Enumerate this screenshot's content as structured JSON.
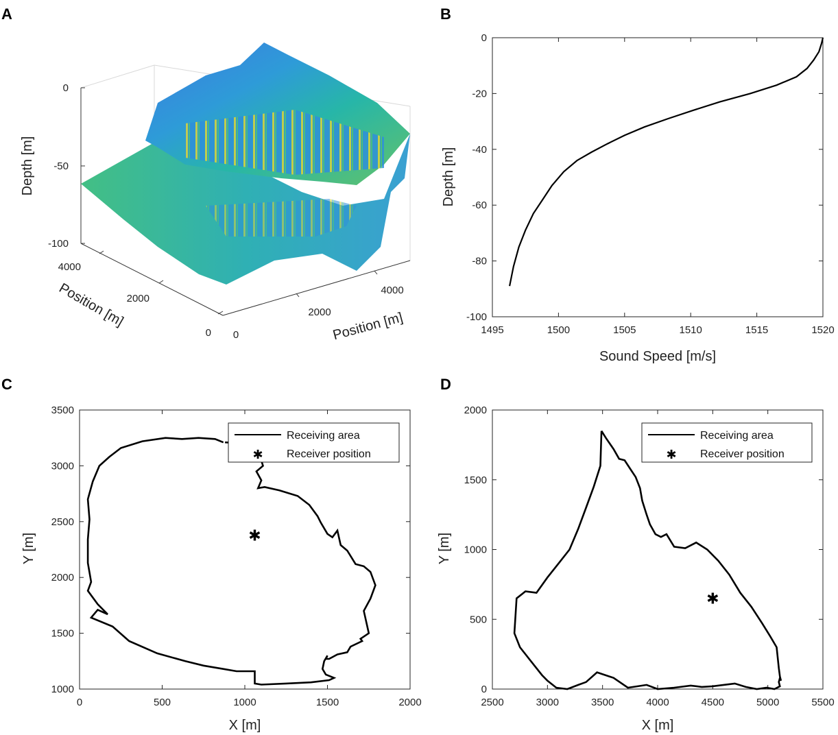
{
  "chart_data": [
    {
      "panel": "A",
      "type": "surface",
      "zlabel": "Depth [m]",
      "xlabel": "Position [m]",
      "ylabel": "Position [m]",
      "z_ticks": [
        "0",
        "-50",
        "-100"
      ],
      "x_ticks": [
        "0",
        "2000",
        "4000"
      ],
      "y_ticks": [
        "0",
        "2000",
        "4000"
      ],
      "zlim": [
        -100,
        0
      ],
      "colormap": [
        "#3d7be0",
        "#2e9bd8",
        "#27b6a8",
        "#63c26a",
        "#e7d63c"
      ]
    },
    {
      "panel": "B",
      "type": "line",
      "xlabel": "Sound Speed [m/s]",
      "ylabel": "Depth [m]",
      "xlim": [
        1495,
        1520
      ],
      "ylim": [
        -100,
        0
      ],
      "x_ticks": [
        1495,
        1500,
        1505,
        1510,
        1515,
        1520
      ],
      "y_ticks": [
        0,
        -20,
        -40,
        -60,
        -80,
        -100
      ],
      "x": [
        1520.0,
        1519.9,
        1519.7,
        1519.3,
        1518.8,
        1518.0,
        1516.5,
        1514.5,
        1512.2,
        1510.2,
        1508.3,
        1506.5,
        1505.0,
        1503.7,
        1502.5,
        1501.4,
        1500.4,
        1499.5,
        1498.8,
        1498.1,
        1497.5,
        1497.0,
        1496.6,
        1496.3
      ],
      "y": [
        0,
        -2,
        -5,
        -8,
        -11,
        -14,
        -17,
        -20,
        -23,
        -26,
        -29,
        -32,
        -35,
        -38,
        -41,
        -44,
        -48,
        -53,
        -58,
        -63,
        -69,
        -75,
        -82,
        -89
      ],
      "color": "#000000"
    },
    {
      "panel": "C",
      "type": "line",
      "xlabel": "X [m]",
      "ylabel": "Y [m]",
      "xlim": [
        0,
        2000
      ],
      "ylim": [
        1000,
        3500
      ],
      "x_ticks": [
        0,
        500,
        1000,
        1500,
        2000
      ],
      "y_ticks": [
        1000,
        1500,
        2000,
        2500,
        3000,
        3500
      ],
      "series": [
        {
          "name": "Receiving area",
          "x": [
            880,
            1010,
            1070,
            1080,
            1110,
            1070,
            1100,
            1080,
            1120,
            1210,
            1320,
            1390,
            1440,
            1460,
            1500,
            1530,
            1560,
            1580,
            1620,
            1670,
            1720,
            1760,
            1790,
            1760,
            1720,
            1750,
            1700,
            1710,
            1640,
            1620,
            1560,
            1510,
            1490,
            1500,
            1480,
            1470,
            1490,
            1540,
            1510,
            1400,
            1250,
            1100,
            1060,
            1060,
            1060,
            950,
            870,
            750,
            640,
            470,
            300,
            200,
            70,
            110,
            170,
            110,
            50,
            70,
            50,
            50,
            60,
            50,
            80,
            120,
            180,
            250,
            380,
            520,
            620,
            720,
            820,
            870
          ],
          "y": [
            3210,
            3200,
            3180,
            3140,
            3000,
            2950,
            2870,
            2800,
            2810,
            2780,
            2730,
            2650,
            2550,
            2490,
            2390,
            2360,
            2420,
            2290,
            2240,
            2120,
            2100,
            2050,
            1930,
            1810,
            1700,
            1500,
            1450,
            1430,
            1380,
            1330,
            1310,
            1270,
            1270,
            1300,
            1250,
            1180,
            1130,
            1100,
            1080,
            1060,
            1050,
            1040,
            1050,
            1080,
            1160,
            1160,
            1180,
            1210,
            1250,
            1320,
            1430,
            1560,
            1640,
            1710,
            1670,
            1760,
            1880,
            1960,
            2130,
            2340,
            2520,
            2700,
            2860,
            3000,
            3080,
            3160,
            3220,
            3250,
            3240,
            3250,
            3240,
            3210
          ]
        },
        {
          "name": "Receiver position",
          "x": [
            1060
          ],
          "y": [
            2380
          ]
        }
      ],
      "legend": "top-right"
    },
    {
      "panel": "D",
      "type": "line",
      "xlabel": "X [m]",
      "ylabel": "Y [m]",
      "xlim": [
        2500,
        5500
      ],
      "ylim": [
        0,
        2000
      ],
      "x_ticks": [
        2500,
        3000,
        3500,
        4000,
        4500,
        5000,
        5500
      ],
      "y_ticks": [
        0,
        500,
        1000,
        1500,
        2000
      ],
      "series": [
        {
          "name": "Receiving area",
          "x": [
            3490,
            3530,
            3600,
            3650,
            3700,
            3750,
            3800,
            3840,
            3860,
            3900,
            3930,
            3980,
            4030,
            4080,
            4150,
            4250,
            4350,
            4450,
            4550,
            4650,
            4750,
            4850,
            4950,
            5020,
            5080,
            5100,
            5110,
            5120,
            5110,
            5100,
            5110,
            5060,
            4990,
            4900,
            4800,
            4700,
            4600,
            4500,
            4400,
            4300,
            4150,
            4000,
            3900,
            3820,
            3730,
            3600,
            3450,
            3350,
            3280,
            3180,
            3080,
            3000,
            2950,
            2850,
            2750,
            2700,
            2720,
            2800,
            2900,
            3000,
            3100,
            3200,
            3280,
            3350,
            3420,
            3480,
            3490
          ],
          "y": [
            1850,
            1800,
            1720,
            1650,
            1640,
            1580,
            1520,
            1440,
            1350,
            1250,
            1180,
            1110,
            1090,
            1110,
            1020,
            1010,
            1050,
            1000,
            920,
            820,
            690,
            590,
            470,
            380,
            300,
            150,
            90,
            60,
            80,
            50,
            20,
            0,
            10,
            0,
            15,
            40,
            30,
            20,
            15,
            25,
            10,
            0,
            30,
            20,
            10,
            80,
            120,
            50,
            30,
            0,
            10,
            60,
            100,
            200,
            300,
            400,
            650,
            700,
            690,
            800,
            900,
            1000,
            1150,
            1300,
            1450,
            1600,
            1850
          ]
        },
        {
          "name": "Receiver position",
          "x": [
            4500
          ],
          "y": [
            650
          ]
        }
      ],
      "legend": "top-right"
    }
  ]
}
